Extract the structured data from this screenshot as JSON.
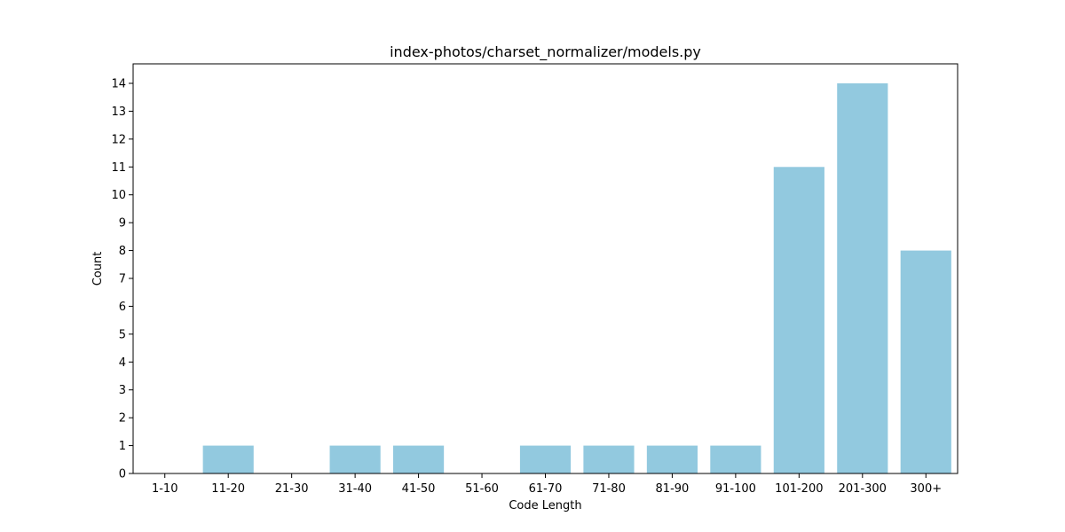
{
  "chart_data": {
    "type": "bar",
    "title": "index-photos/charset_normalizer/models.py",
    "xlabel": "Code Length",
    "ylabel": "Count",
    "categories": [
      "1-10",
      "11-20",
      "21-30",
      "31-40",
      "41-50",
      "51-60",
      "61-70",
      "71-80",
      "81-90",
      "91-100",
      "101-200",
      "201-300",
      "300+"
    ],
    "values": [
      0,
      1,
      0,
      1,
      1,
      0,
      1,
      1,
      1,
      1,
      11,
      14,
      8
    ],
    "ylim": [
      0,
      14.7
    ],
    "yticks": [
      0,
      1,
      2,
      3,
      4,
      5,
      6,
      7,
      8,
      9,
      10,
      11,
      12,
      13,
      14
    ],
    "grid": false,
    "bar_color": "#92c9df"
  }
}
